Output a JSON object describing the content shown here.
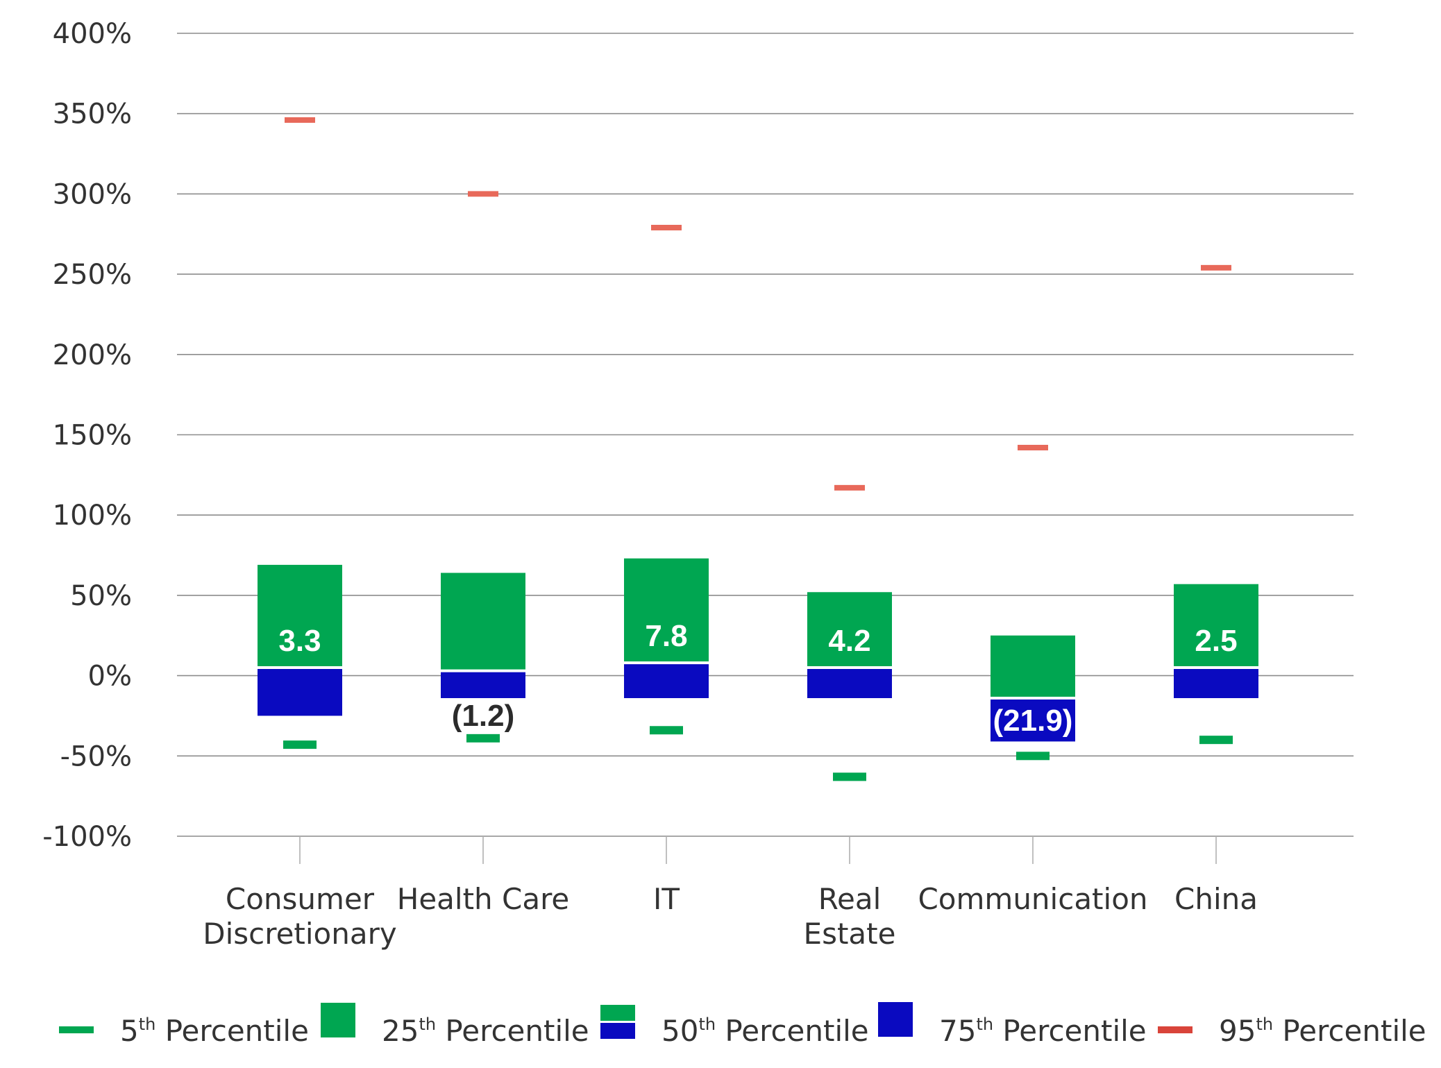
{
  "chart_data": {
    "type": "box",
    "ylim": [
      -100,
      400
    ],
    "yticks": [
      400,
      350,
      300,
      250,
      200,
      150,
      100,
      50,
      0,
      -50,
      -100
    ],
    "ytick_labels": [
      "400%",
      "350%",
      "300%",
      "250%",
      "200%",
      "150%",
      "100%",
      "50%",
      "0%",
      "-50%",
      "-100%"
    ],
    "y_unit": "%",
    "grid": true,
    "legend_position": "bottom",
    "categories": [
      {
        "label_lines": [
          "Consumer",
          "Discretionary"
        ],
        "p5": -43,
        "p25": -25,
        "p50": 5,
        "p75": 69,
        "p95": 346,
        "data_label": "3.3",
        "data_label_value": 3.3
      },
      {
        "label_lines": [
          "Health Care"
        ],
        "p5": -39,
        "p25": -14,
        "p50": 3,
        "p75": 64,
        "p95": 300,
        "data_label": "(1.2)",
        "data_label_value": -1.2
      },
      {
        "label_lines": [
          "IT"
        ],
        "p5": -34,
        "p25": -14,
        "p50": 8,
        "p75": 73,
        "p95": 279,
        "data_label": "7.8",
        "data_label_value": 7.8
      },
      {
        "label_lines": [
          "Real",
          "Estate"
        ],
        "p5": -63,
        "p25": -14,
        "p50": 5,
        "p75": 52,
        "p95": 117,
        "data_label": "4.2",
        "data_label_value": 4.2
      },
      {
        "label_lines": [
          "Communication"
        ],
        "p5": -50,
        "p25": -41,
        "p50": -14,
        "p75": 25,
        "p95": 142,
        "data_label": "(21.9)",
        "data_label_value": -21.9
      },
      {
        "label_lines": [
          "China"
        ],
        "p5": -40,
        "p25": -14,
        "p50": 5,
        "p75": 57,
        "p95": 254,
        "data_label": "2.5",
        "data_label_value": 2.5
      }
    ],
    "legend": [
      {
        "key": "p5",
        "base": "5",
        "sup": "th",
        "rest": " Percentile"
      },
      {
        "key": "p25",
        "base": "25",
        "sup": "th",
        "rest": " Percentile"
      },
      {
        "key": "p50",
        "base": "50",
        "sup": "th",
        "rest": " Percentile"
      },
      {
        "key": "p75",
        "base": "75",
        "sup": "th",
        "rest": " Percentile"
      },
      {
        "key": "p95",
        "base": "95",
        "sup": "th",
        "rest": " Percentile"
      }
    ],
    "colors": {
      "green": "#00a651",
      "blue": "#0a0ac0",
      "red": "#e8695a",
      "grid": "#8c8c8c",
      "text": "#333333",
      "label_white": "#ffffff",
      "label_dark": "#2b2b2b"
    }
  }
}
